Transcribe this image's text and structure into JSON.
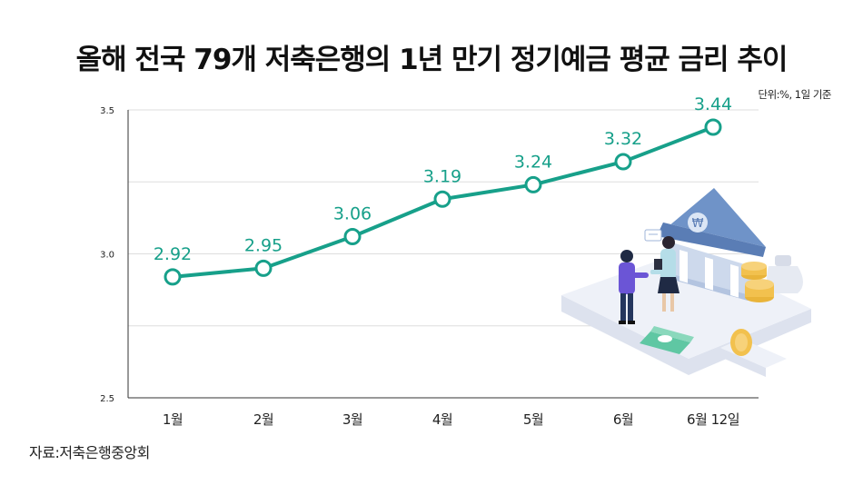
{
  "title": "올해 전국 79개 저축은행의 1년 만기 정기예금 평균 금리 추이",
  "unit_note": "단위:%, 1일 기준",
  "source": "자료:저축은행중앙회",
  "colors": {
    "line": "#17a08a",
    "axis": "#333333",
    "grid": "#dddddd",
    "text": "#222222"
  },
  "illustration": {
    "name": "bank-handshake-illustration",
    "bank_sign": "₩"
  },
  "chart_data": {
    "type": "line",
    "categories": [
      "1월",
      "2월",
      "3월",
      "4월",
      "5월",
      "6월",
      "6월 12일"
    ],
    "values": [
      2.92,
      2.95,
      3.06,
      3.19,
      3.24,
      3.32,
      3.44
    ],
    "value_labels": [
      "2.92",
      "2.95",
      "3.06",
      "3.19",
      "3.24",
      "3.32",
      "3.44"
    ],
    "y_ticks": [
      2.5,
      3.0,
      3.5
    ],
    "y_tick_labels": [
      "2.5",
      "3.0",
      "3.5"
    ],
    "ylim": [
      2.5,
      3.5
    ],
    "grid": true,
    "marker": "hollow-circle"
  }
}
